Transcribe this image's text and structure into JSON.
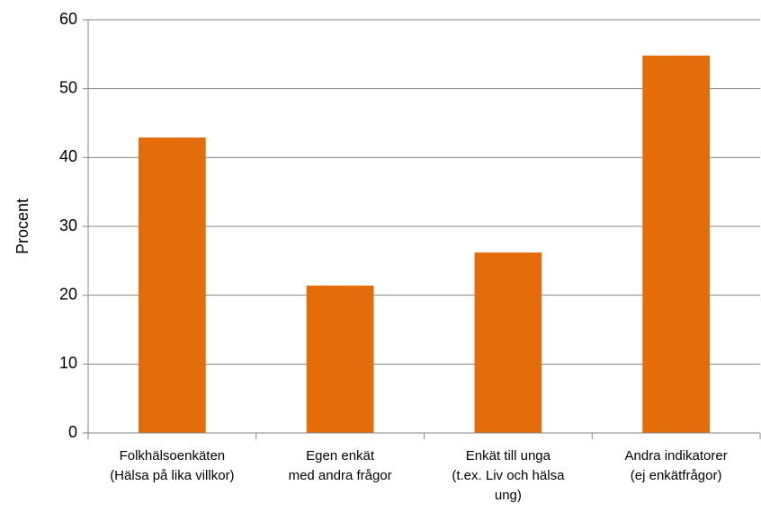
{
  "chart_data": {
    "type": "bar",
    "y_label": "Procent",
    "categories": [
      [
        "Folkhälsoenkäten",
        "(Hälsa på lika villkor)"
      ],
      [
        "Egen enkät",
        "med andra frågor"
      ],
      [
        "Enkät till unga",
        "(t.ex. Liv och hälsa",
        "ung)"
      ],
      [
        "Andra indikatorer",
        "(ej enkätfrågor)"
      ]
    ],
    "values": [
      42.9,
      21.4,
      26.2,
      54.8
    ],
    "color": "#e46c0a",
    "ylim": [
      0,
      60
    ],
    "yticks": [
      0,
      10,
      20,
      30,
      40,
      50,
      60
    ],
    "grid": true
  }
}
